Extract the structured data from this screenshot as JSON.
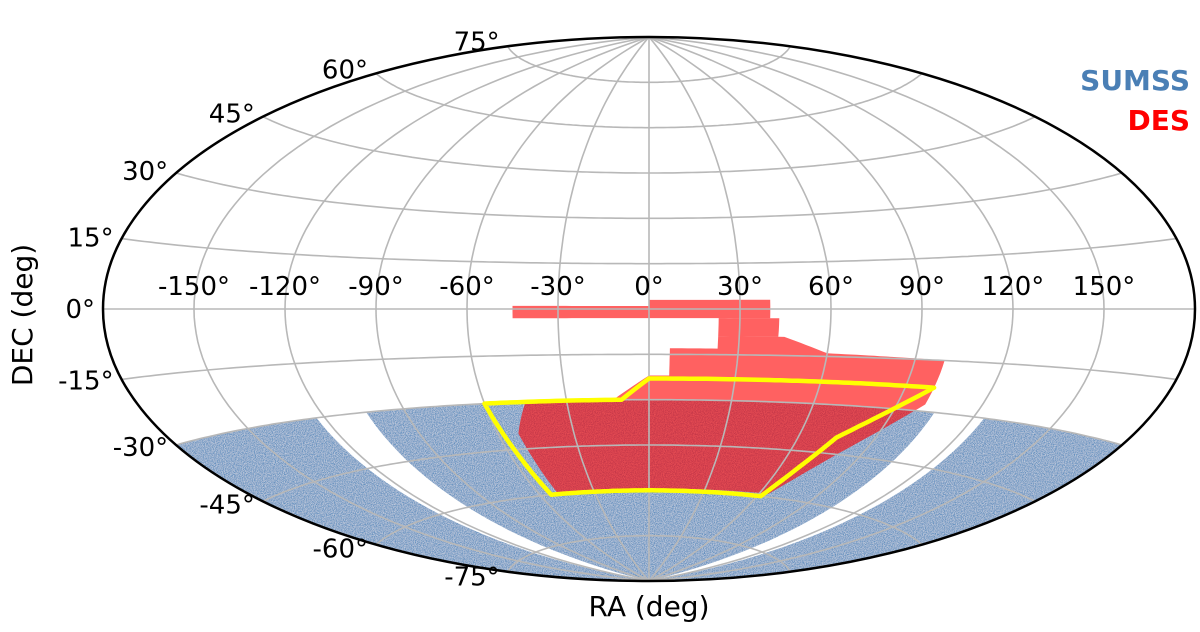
{
  "chart_data": {
    "type": "scatter",
    "projection": "aitoff",
    "title": "",
    "xlabel": "RA (deg)",
    "ylabel": "DEC (deg)",
    "grid": true,
    "legend_position": "top-right",
    "ra_ticks": [
      -150,
      -120,
      -90,
      -60,
      -30,
      0,
      30,
      60,
      90,
      120,
      150
    ],
    "dec_ticks": [
      -75,
      -60,
      -45,
      -30,
      -15,
      0,
      15,
      30,
      45,
      60,
      75
    ],
    "ra_tick_labels": [
      "-150°",
      "-120°",
      "-90°",
      "-60°",
      "-30°",
      "0°",
      "30°",
      "60°",
      "90°",
      "120°",
      "150°"
    ],
    "dec_tick_labels": [
      "-75°",
      "-60°",
      "-45°",
      "-30°",
      "-15°",
      "0°",
      "15°",
      "30°",
      "45°",
      "60°",
      "75°"
    ],
    "series": [
      {
        "name": "SUMSS",
        "color": "#4a7fb5",
        "kind": "footprint",
        "dec_max": -30,
        "ra_gaps": [
          [
            -123,
            -104
          ],
          [
            105,
            124
          ]
        ]
      },
      {
        "name": "DES",
        "color": "#ff0000",
        "kind": "footprint",
        "polygons": [
          [
            [
              -45,
              -1
            ],
            [
              -45,
              1
            ],
            [
              0,
              1
            ],
            [
              0,
              -3
            ],
            [
              -45,
              -3
            ]
          ],
          [
            [
              0,
              -3
            ],
            [
              0,
              3
            ],
            [
              40,
              3
            ],
            [
              40,
              -3
            ]
          ],
          [
            [
              23,
              -9
            ],
            [
              43,
              -9
            ],
            [
              43,
              -3
            ],
            [
              23,
              -3
            ]
          ],
          [
            [
              7,
              -22
            ],
            [
              7,
              -13
            ],
            [
              23,
              -13
            ],
            [
              23,
              -9
            ],
            [
              45,
              -9
            ],
            [
              60,
              -14
            ],
            [
              100,
              -15
            ],
            [
              100,
              -28
            ],
            [
              80,
              -45
            ],
            [
              65,
              -59
            ],
            [
              -50,
              -60
            ],
            [
              -52,
              -40
            ],
            [
              -45,
              -30
            ],
            [
              -13,
              -30
            ],
            [
              0,
              -22
            ]
          ]
        ]
      }
    ],
    "outline": {
      "color": "#ffff00",
      "points": [
        [
          -60,
          -30
        ],
        [
          -10,
          -30
        ],
        [
          0,
          -23
        ],
        [
          100,
          -23
        ],
        [
          75,
          -40
        ],
        [
          62,
          -60
        ],
        [
          -54,
          -60
        ],
        [
          -60,
          -30
        ]
      ]
    }
  }
}
